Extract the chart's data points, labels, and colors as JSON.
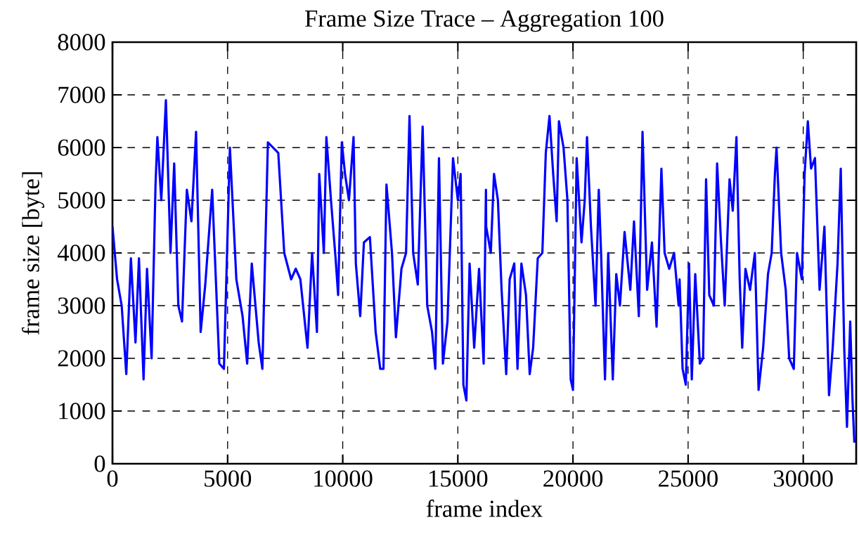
{
  "chart_data": {
    "type": "line",
    "title": "Frame Size Trace – Aggregation 100",
    "xlabel": "frame index",
    "ylabel": "frame size [byte]",
    "xlim": [
      0,
      32300
    ],
    "ylim": [
      0,
      8000
    ],
    "xticks": [
      0,
      5000,
      10000,
      15000,
      20000,
      25000,
      30000
    ],
    "yticks": [
      0,
      1000,
      2000,
      3000,
      4000,
      5000,
      6000,
      7000,
      8000
    ],
    "grid": true,
    "marker": "none",
    "line_style": "solid",
    "series": [
      {
        "color": "#0000ff",
        "x": [
          0,
          200,
          400,
          600,
          800,
          1000,
          1150,
          1350,
          1500,
          1700,
          1870,
          1950,
          2120,
          2320,
          2520,
          2680,
          2860,
          3020,
          3230,
          3430,
          3630,
          3830,
          4030,
          4330,
          4640,
          4840,
          5100,
          5380,
          5650,
          5850,
          6050,
          6350,
          6510,
          6750,
          7200,
          7460,
          7760,
          7960,
          8160,
          8470,
          8670,
          8880,
          8980,
          9180,
          9290,
          9490,
          9690,
          9800,
          9960,
          10100,
          10270,
          10470,
          10570,
          10760,
          10920,
          11180,
          11430,
          11630,
          11770,
          11900,
          12140,
          12310,
          12550,
          12750,
          12900,
          13060,
          13260,
          13470,
          13670,
          13880,
          14020,
          14180,
          14350,
          14550,
          14790,
          15000,
          15120,
          15240,
          15370,
          15510,
          15710,
          15920,
          16120,
          16220,
          16230,
          16430,
          16570,
          16740,
          16900,
          17100,
          17250,
          17450,
          17590,
          17760,
          17960,
          18120,
          18270,
          18470,
          18670,
          18820,
          18980,
          19140,
          19290,
          19390,
          19590,
          19760,
          19900,
          20000,
          20160,
          20370,
          20510,
          20610,
          20780,
          20980,
          21120,
          21220,
          21390,
          21530,
          21730,
          21880,
          22040,
          22240,
          22490,
          22650,
          22860,
          23020,
          23220,
          23430,
          23630,
          23840,
          23980,
          24180,
          24390,
          24590,
          24630,
          24760,
          24900,
          25040,
          25160,
          25310,
          25510,
          25650,
          25780,
          25920,
          26120,
          26260,
          26430,
          26590,
          26800,
          26940,
          27100,
          27240,
          27350,
          27490,
          27690,
          27900,
          28060,
          28260,
          28470,
          28630,
          28770,
          28840,
          29040,
          29240,
          29390,
          29590,
          29730,
          29940,
          30060,
          30200,
          30340,
          30510,
          30710,
          30920,
          31120,
          31280,
          31490,
          31630,
          31780,
          31900,
          32040,
          32140,
          32220
        ],
        "values": [
          4500,
          3500,
          3000,
          1700,
          3900,
          2300,
          3900,
          1600,
          3700,
          2000,
          5300,
          6200,
          5000,
          6900,
          4000,
          5700,
          3000,
          2700,
          5200,
          4600,
          6300,
          2500,
          3400,
          5200,
          1900,
          1800,
          6000,
          3500,
          2800,
          1900,
          3800,
          2300,
          1800,
          6100,
          5900,
          4000,
          3500,
          3700,
          3500,
          2200,
          4000,
          2500,
          5500,
          4000,
          6200,
          5000,
          3900,
          3200,
          6100,
          5500,
          5000,
          6200,
          3800,
          2800,
          4200,
          4300,
          2500,
          1800,
          1800,
          5300,
          4000,
          2400,
          3700,
          4000,
          6600,
          4000,
          3400,
          6400,
          3000,
          2500,
          1800,
          5800,
          1900,
          2700,
          5800,
          5000,
          5500,
          1500,
          1200,
          3800,
          2200,
          3700,
          1900,
          5200,
          4500,
          4000,
          5500,
          5000,
          3300,
          1700,
          3500,
          3800,
          1800,
          3800,
          3200,
          1700,
          2200,
          3900,
          4000,
          5900,
          6600,
          5500,
          4600,
          6500,
          6000,
          5000,
          1600,
          1400,
          5800,
          4200,
          5000,
          6200,
          4500,
          3000,
          5200,
          4000,
          1600,
          4000,
          1600,
          3600,
          3000,
          4400,
          3300,
          4600,
          2800,
          6300,
          3300,
          4200,
          2600,
          5600,
          4000,
          3700,
          4000,
          3000,
          3500,
          1800,
          1500,
          3800,
          1600,
          3600,
          1900,
          2000,
          5400,
          3200,
          3000,
          5700,
          4200,
          3000,
          5400,
          4800,
          6200,
          3500,
          2200,
          3700,
          3300,
          4000,
          1400,
          2200,
          3600,
          4000,
          5500,
          6000,
          4000,
          3300,
          2000,
          1800,
          4000,
          3500,
          5500,
          6500,
          5600,
          5800,
          3300,
          4500,
          1300,
          2200,
          3800,
          5600,
          2200,
          700,
          2700,
          1200,
          400
        ]
      }
    ]
  }
}
